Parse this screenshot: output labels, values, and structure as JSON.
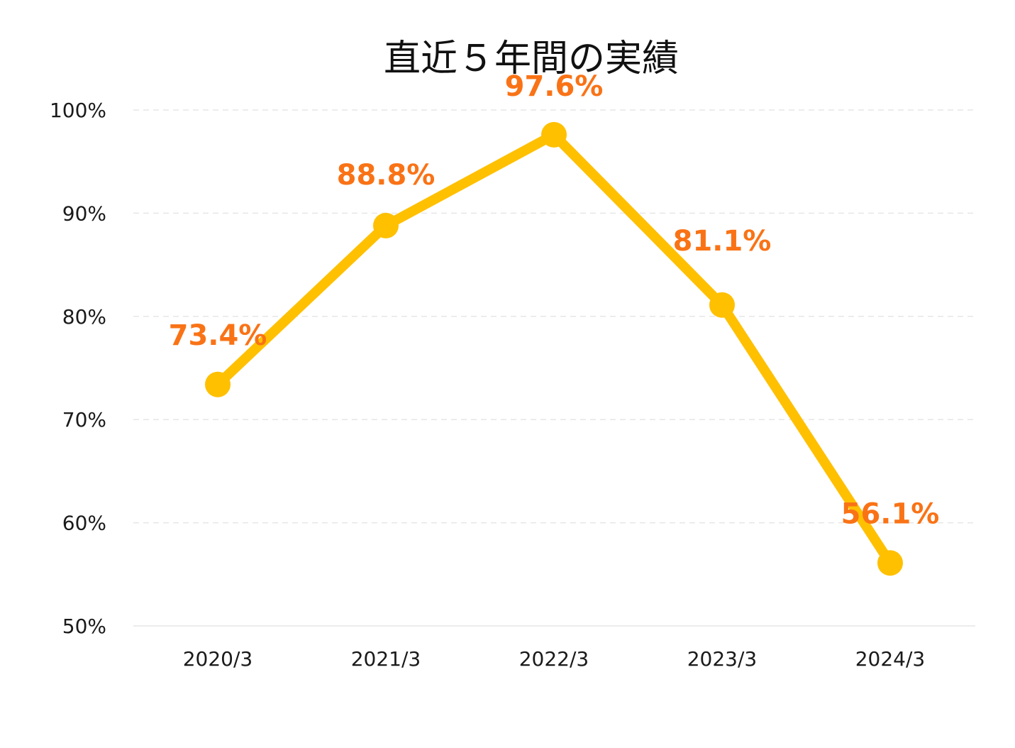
{
  "chart_data": {
    "type": "line",
    "title": "直近５年間の実績",
    "categories": [
      "2020/3",
      "2021/3",
      "2022/3",
      "2023/3",
      "2024/3"
    ],
    "values": [
      73.4,
      88.8,
      97.6,
      81.1,
      56.1
    ],
    "data_labels": [
      "73.4%",
      "88.8%",
      "97.6%",
      "81.1%",
      "56.1%"
    ],
    "yticks": [
      {
        "value": 100,
        "label": "100%"
      },
      {
        "value": 90,
        "label": "90%"
      },
      {
        "value": 80,
        "label": "80%"
      },
      {
        "value": 70,
        "label": "70%"
      },
      {
        "value": 60,
        "label": "60%"
      },
      {
        "value": 50,
        "label": "50%"
      }
    ],
    "ylim": [
      50,
      100
    ],
    "grid": true,
    "colors": {
      "line": "#FFC000",
      "label": "#F97316",
      "grid": "#E6E6E6"
    }
  }
}
